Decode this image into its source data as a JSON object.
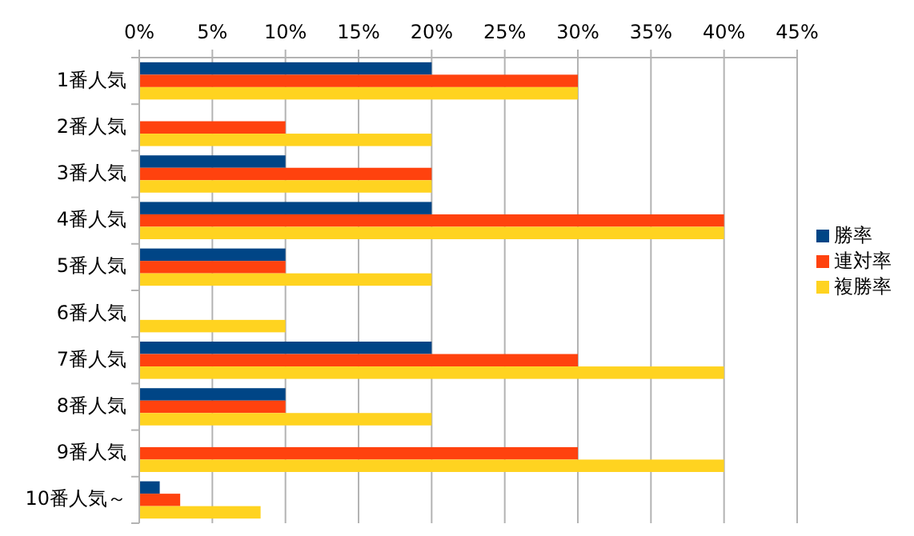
{
  "chart_data": {
    "type": "bar",
    "orientation": "horizontal",
    "categories": [
      "1番人気",
      "2番人気",
      "3番人気",
      "4番人気",
      "5番人気",
      "6番人気",
      "7番人気",
      "8番人気",
      "9番人気",
      "10番人気～"
    ],
    "series": [
      {
        "name": "勝率",
        "color": "#004586",
        "values": [
          20,
          0,
          10,
          20,
          10,
          0,
          20,
          10,
          0,
          1.4
        ]
      },
      {
        "name": "連対率",
        "color": "#ff420e",
        "values": [
          30,
          10,
          20,
          40,
          10,
          0,
          30,
          10,
          30,
          2.8
        ]
      },
      {
        "name": "複勝率",
        "color": "#ffd320",
        "values": [
          30,
          20,
          20,
          40,
          20,
          10,
          40,
          20,
          40,
          8.3
        ]
      }
    ],
    "xlim": [
      0,
      45
    ],
    "xticks": [
      {
        "value": 0,
        "label": "0%"
      },
      {
        "value": 5,
        "label": "5%"
      },
      {
        "value": 10,
        "label": "10%"
      },
      {
        "value": 15,
        "label": "15%"
      },
      {
        "value": 20,
        "label": "20%"
      },
      {
        "value": 25,
        "label": "25%"
      },
      {
        "value": 30,
        "label": "30%"
      },
      {
        "value": 35,
        "label": "35%"
      },
      {
        "value": 40,
        "label": "40%"
      },
      {
        "value": 45,
        "label": "45%"
      }
    ],
    "grid": "x",
    "legend": "right"
  }
}
